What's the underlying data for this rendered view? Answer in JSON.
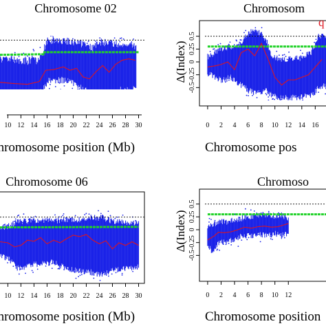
{
  "figure": {
    "panels": [
      {
        "title": "Chromosome 02",
        "xlabel": "Chromosome position (Mb)",
        "ylabel": "",
        "marker": ""
      },
      {
        "title": "Chromosom",
        "xlabel": "Chromosome pos",
        "ylabel": "Δ(Index)",
        "marker": "q"
      },
      {
        "title": "Chromosome 06",
        "xlabel": "Chromosome position (Mb)",
        "ylabel": "",
        "marker": ""
      },
      {
        "title": "Chromoso",
        "xlabel": "Chromosome position",
        "ylabel": "Δ(Index)",
        "marker": ""
      }
    ]
  },
  "colors": {
    "points": "#1a22e8",
    "index_line": "#e0141e",
    "threshold": "#22d22a",
    "reference": "#000000"
  },
  "chart_data": [
    {
      "type": "scatter",
      "title": "Chromosome 02",
      "xlabel": "Chromosome position (Mb)",
      "ylabel": "",
      "x_ticks": [
        10,
        12,
        14,
        16,
        18,
        20,
        22,
        24,
        26,
        28,
        30
      ],
      "y_ticks": [],
      "xlim": [
        8.8,
        31
      ],
      "ylim": [
        -0.75,
        0.75
      ],
      "reference_line": 0.5,
      "threshold": [
        {
          "x": 8.8,
          "y": 0.28
        },
        {
          "x": 15.5,
          "y": 0.29
        },
        {
          "x": 15.6,
          "y": 0.32
        },
        {
          "x": 30,
          "y": 0.32
        }
      ],
      "band": [
        {
          "x": 8.8,
          "lo": -0.32,
          "hi": 0.22
        },
        {
          "x": 11,
          "lo": -0.3,
          "hi": 0.21
        },
        {
          "x": 13,
          "lo": -0.33,
          "hi": 0.19
        },
        {
          "x": 14.5,
          "lo": -0.3,
          "hi": 0.2
        },
        {
          "x": 15.4,
          "lo": -0.26,
          "hi": 0.32
        },
        {
          "x": 16,
          "lo": -0.12,
          "hi": 0.5
        },
        {
          "x": 18,
          "lo": -0.1,
          "hi": 0.5
        },
        {
          "x": 20,
          "lo": -0.13,
          "hi": 0.48
        },
        {
          "x": 22,
          "lo": -0.25,
          "hi": 0.42
        },
        {
          "x": 23,
          "lo": -0.32,
          "hi": 0.38
        },
        {
          "x": 24,
          "lo": -0.3,
          "hi": 0.47
        },
        {
          "x": 26,
          "lo": -0.32,
          "hi": 0.45
        },
        {
          "x": 27,
          "lo": -0.25,
          "hi": 0.43
        },
        {
          "x": 28,
          "lo": -0.26,
          "hi": 0.47
        },
        {
          "x": 29,
          "lo": -0.27,
          "hi": 0.45
        },
        {
          "x": 29.6,
          "lo": -0.2,
          "hi": 0.38
        }
      ],
      "index_line": [
        {
          "x": 8.8,
          "y": -0.13
        },
        {
          "x": 11,
          "y": -0.15
        },
        {
          "x": 13,
          "y": -0.16
        },
        {
          "x": 14.8,
          "y": -0.12
        },
        {
          "x": 15.8,
          "y": 0.05
        },
        {
          "x": 17,
          "y": 0.06
        },
        {
          "x": 18.5,
          "y": 0.1
        },
        {
          "x": 19.5,
          "y": 0.05
        },
        {
          "x": 20.5,
          "y": 0.08
        },
        {
          "x": 21.5,
          "y": -0.05
        },
        {
          "x": 22.5,
          "y": -0.08
        },
        {
          "x": 23.5,
          "y": 0.03
        },
        {
          "x": 24.5,
          "y": 0.12
        },
        {
          "x": 25.5,
          "y": 0.02
        },
        {
          "x": 26.5,
          "y": 0.14
        },
        {
          "x": 27.5,
          "y": 0.2
        },
        {
          "x": 28.5,
          "y": 0.22
        },
        {
          "x": 29.5,
          "y": 0.2
        }
      ]
    },
    {
      "type": "scatter",
      "title": "Chromosom",
      "xlabel": "Chromosome pos",
      "ylabel": "Δ(Index)",
      "x_ticks": [
        0,
        2,
        4,
        6,
        8,
        10,
        12,
        14,
        16
      ],
      "y_ticks": [
        0.5,
        0.25,
        0,
        -0.25,
        -0.5
      ],
      "xlim": [
        -0.4,
        17.6
      ],
      "ylim": [
        -0.75,
        0.75
      ],
      "reference_line": 0.5,
      "threshold": [
        {
          "x": 0,
          "y": 0.3
        },
        {
          "x": 17.6,
          "y": 0.3
        }
      ],
      "band": [
        {
          "x": 0,
          "lo": -0.22,
          "hi": 0.1
        },
        {
          "x": 2,
          "lo": -0.35,
          "hi": 0.25
        },
        {
          "x": 3.5,
          "lo": -0.3,
          "hi": 0.3
        },
        {
          "x": 5,
          "lo": -0.45,
          "hi": 0.35
        },
        {
          "x": 6,
          "lo": -0.55,
          "hi": 0.55
        },
        {
          "x": 7,
          "lo": -0.6,
          "hi": 0.62
        },
        {
          "x": 8,
          "lo": -0.62,
          "hi": 0.55
        },
        {
          "x": 8.8,
          "lo": -0.55,
          "hi": 0.4
        },
        {
          "x": 9.5,
          "lo": -0.65,
          "hi": 0.15
        },
        {
          "x": 10.5,
          "lo": -0.7,
          "hi": 0.05
        },
        {
          "x": 12,
          "lo": -0.7,
          "hi": 0.05
        },
        {
          "x": 14,
          "lo": -0.68,
          "hi": 0.08
        },
        {
          "x": 15.5,
          "lo": -0.65,
          "hi": 0.2
        },
        {
          "x": 16.5,
          "lo": -0.5,
          "hi": 0.5
        },
        {
          "x": 17.6,
          "lo": -0.45,
          "hi": 0.5
        }
      ],
      "index_line": [
        {
          "x": 0,
          "y": -0.1
        },
        {
          "x": 1,
          "y": -0.08
        },
        {
          "x": 2,
          "y": -0.05
        },
        {
          "x": 3,
          "y": 0.0
        },
        {
          "x": 4,
          "y": -0.15
        },
        {
          "x": 5,
          "y": 0.18
        },
        {
          "x": 6,
          "y": 0.25
        },
        {
          "x": 7,
          "y": 0.12
        },
        {
          "x": 8,
          "y": 0.36
        },
        {
          "x": 9,
          "y": 0.05
        },
        {
          "x": 10,
          "y": -0.3
        },
        {
          "x": 11,
          "y": -0.45
        },
        {
          "x": 12,
          "y": -0.35
        },
        {
          "x": 13,
          "y": -0.35
        },
        {
          "x": 14,
          "y": -0.3
        },
        {
          "x": 15,
          "y": -0.25
        },
        {
          "x": 16,
          "y": -0.1
        },
        {
          "x": 17,
          "y": 0.05
        }
      ]
    },
    {
      "type": "scatter",
      "title": "Chromosome 06",
      "xlabel": "Chromosome position (Mb)",
      "ylabel": "",
      "x_ticks": [
        10,
        12,
        14,
        16,
        18,
        20,
        22,
        24,
        26,
        28,
        30
      ],
      "y_ticks": [],
      "xlim": [
        8.8,
        31
      ],
      "ylim": [
        -0.75,
        0.75
      ],
      "reference_line": 0.5,
      "threshold": [
        {
          "x": 8.8,
          "y": 0.3
        },
        {
          "x": 30,
          "y": 0.31
        }
      ],
      "band": [
        {
          "x": 8.8,
          "lo": -0.25,
          "hi": 0.3
        },
        {
          "x": 10,
          "lo": -0.28,
          "hi": 0.32
        },
        {
          "x": 11.4,
          "lo": -0.5,
          "hi": 0.4
        },
        {
          "x": 13,
          "lo": -0.45,
          "hi": 0.42
        },
        {
          "x": 15,
          "lo": -0.4,
          "hi": 0.45
        },
        {
          "x": 17,
          "lo": -0.38,
          "hi": 0.42
        },
        {
          "x": 19,
          "lo": -0.5,
          "hi": 0.45
        },
        {
          "x": 21,
          "lo": -0.55,
          "hi": 0.44
        },
        {
          "x": 23,
          "lo": -0.58,
          "hi": 0.5
        },
        {
          "x": 24.5,
          "lo": -0.62,
          "hi": 0.48
        },
        {
          "x": 26,
          "lo": -0.55,
          "hi": 0.42
        },
        {
          "x": 28,
          "lo": -0.5,
          "hi": 0.4
        },
        {
          "x": 30,
          "lo": -0.48,
          "hi": 0.38
        }
      ],
      "index_line": [
        {
          "x": 8.8,
          "y": 0.02
        },
        {
          "x": 10,
          "y": 0.0
        },
        {
          "x": 11,
          "y": -0.08
        },
        {
          "x": 12,
          "y": -0.05
        },
        {
          "x": 13,
          "y": 0.05
        },
        {
          "x": 14,
          "y": 0.03
        },
        {
          "x": 15,
          "y": 0.1
        },
        {
          "x": 16,
          "y": -0.02
        },
        {
          "x": 17,
          "y": 0.05
        },
        {
          "x": 18,
          "y": 0.0
        },
        {
          "x": 19,
          "y": 0.08
        },
        {
          "x": 20,
          "y": 0.15
        },
        {
          "x": 21,
          "y": 0.12
        },
        {
          "x": 22,
          "y": 0.16
        },
        {
          "x": 23,
          "y": 0.05
        },
        {
          "x": 24,
          "y": -0.02
        },
        {
          "x": 25,
          "y": 0.04
        },
        {
          "x": 26,
          "y": -0.12
        },
        {
          "x": 27,
          "y": 0.0
        },
        {
          "x": 28,
          "y": -0.05
        },
        {
          "x": 29,
          "y": 0.02
        },
        {
          "x": 30,
          "y": -0.05
        }
      ]
    },
    {
      "type": "scatter",
      "title": "Chromoso",
      "xlabel": "Chromosome position",
      "ylabel": "Δ(Index)",
      "x_ticks": [
        0,
        2,
        4,
        6,
        8,
        10,
        12
      ],
      "y_ticks": [
        0.5,
        0.25,
        0,
        -0.25,
        -0.5
      ],
      "xlim": [
        -0.4,
        17.6
      ],
      "ylim": [
        -0.75,
        0.75
      ],
      "reference_line": 0.5,
      "threshold": [
        {
          "x": 0,
          "y": 0.3
        },
        {
          "x": 17.6,
          "y": 0.3
        }
      ],
      "band": [
        {
          "x": 0,
          "lo": -0.3,
          "hi": 0.05
        },
        {
          "x": 0.8,
          "lo": -0.45,
          "hi": 0.1
        },
        {
          "x": 1.6,
          "lo": -0.25,
          "hi": 0.15
        },
        {
          "x": 3,
          "lo": -0.22,
          "hi": 0.15
        },
        {
          "x": 4,
          "lo": -0.2,
          "hi": 0.2
        },
        {
          "x": 5,
          "lo": -0.1,
          "hi": 0.22
        },
        {
          "x": 6,
          "lo": -0.12,
          "hi": 0.25
        },
        {
          "x": 8,
          "lo": -0.1,
          "hi": 0.3
        },
        {
          "x": 10,
          "lo": -0.08,
          "hi": 0.27
        },
        {
          "x": 11,
          "lo": -0.12,
          "hi": 0.29
        },
        {
          "x": 12,
          "lo": -0.05,
          "hi": 0.22
        }
      ],
      "index_line": [
        {
          "x": 0,
          "y": -0.2
        },
        {
          "x": 1,
          "y": -0.12
        },
        {
          "x": 1.6,
          "y": -0.05
        },
        {
          "x": 2.5,
          "y": -0.06
        },
        {
          "x": 3.5,
          "y": -0.04
        },
        {
          "x": 4.5,
          "y": 0.0
        },
        {
          "x": 5.5,
          "y": 0.05
        },
        {
          "x": 6.5,
          "y": 0.03
        },
        {
          "x": 7.5,
          "y": 0.06
        },
        {
          "x": 8.5,
          "y": 0.07
        },
        {
          "x": 9.5,
          "y": 0.05
        },
        {
          "x": 10.5,
          "y": 0.06
        },
        {
          "x": 11.5,
          "y": 0.1
        },
        {
          "x": 12,
          "y": 0.12
        }
      ]
    }
  ]
}
